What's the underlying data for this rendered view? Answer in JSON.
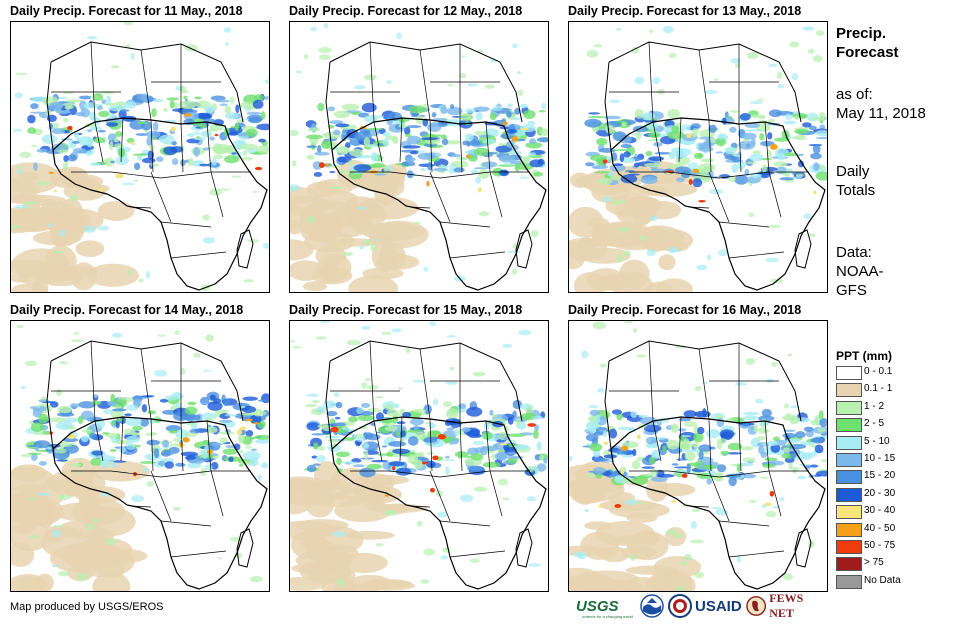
{
  "panels": [
    {
      "title": "Daily Precip. Forecast for 11 May., 2018"
    },
    {
      "title": "Daily Precip. Forecast for 12 May., 2018"
    },
    {
      "title": "Daily Precip. Forecast for 13 May., 2018"
    },
    {
      "title": "Daily Precip. Forecast for 14 May., 2018"
    },
    {
      "title": "Daily Precip. Forecast for 15 May., 2018"
    },
    {
      "title": "Daily Precip. Forecast for 16 May., 2018"
    }
  ],
  "side": {
    "title_line1": "Precip.",
    "title_line2": "Forecast",
    "asof_label": "as of:",
    "asof_date": "May 11, 2018",
    "daily_line1": "Daily",
    "daily_line2": "Totals",
    "data_line1": "Data:",
    "data_line2": "NOAA-",
    "data_line3": "GFS"
  },
  "legend": {
    "title": "PPT (mm)",
    "items": [
      {
        "label": "0 - 0.1",
        "color": "#ffffff"
      },
      {
        "label": "0.1 - 1",
        "color": "#e8d4b0"
      },
      {
        "label": "1 - 2",
        "color": "#b8f0b0"
      },
      {
        "label": "2 - 5",
        "color": "#6ee06e"
      },
      {
        "label": "5 - 10",
        "color": "#a8ecf4"
      },
      {
        "label": "10 - 15",
        "color": "#7cb8ec"
      },
      {
        "label": "15 - 20",
        "color": "#4a90e0"
      },
      {
        "label": "20 - 30",
        "color": "#1c5ad8"
      },
      {
        "label": "30 - 40",
        "color": "#f8e47c"
      },
      {
        "label": "40 - 50",
        "color": "#f4a018"
      },
      {
        "label": "50 - 75",
        "color": "#f03c0c"
      },
      {
        "label": "> 75",
        "color": "#a01c1c"
      },
      {
        "label": "No Data",
        "color": "#999999"
      }
    ]
  },
  "footer": {
    "credit": "Map produced by USGS/EROS"
  },
  "logos": {
    "usgs": "USGS",
    "usgs_tagline": "science for a changing world",
    "usaid": "USAID",
    "fews": "FEWS NET"
  }
}
